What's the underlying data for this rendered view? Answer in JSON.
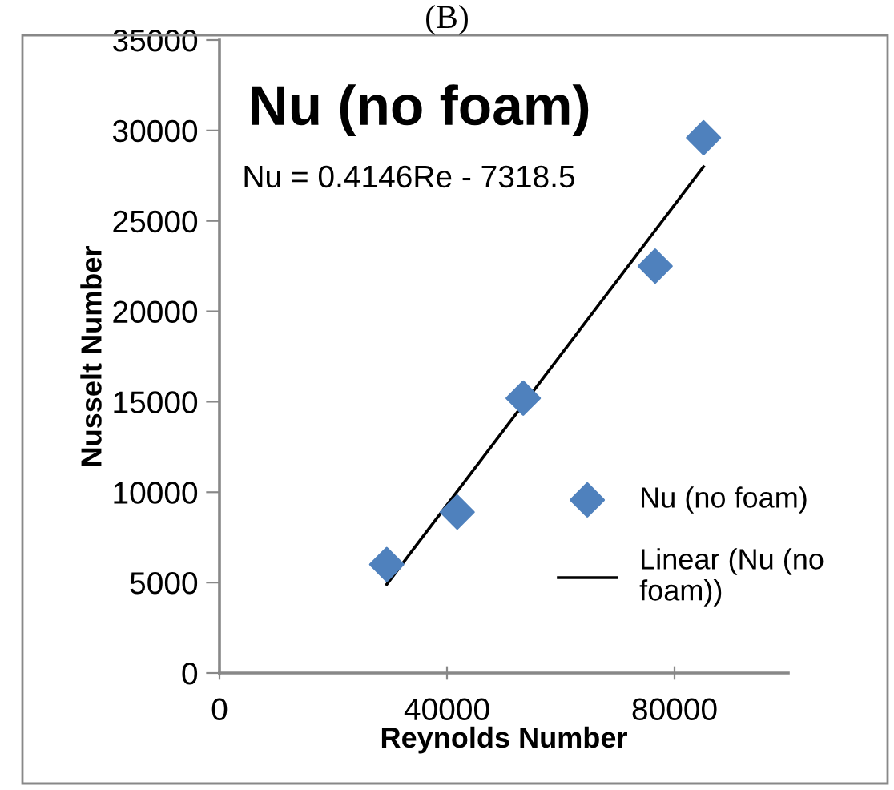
{
  "chart_data": {
    "type": "scatter",
    "title": "Nu (no foam)",
    "subtitle": "(B)",
    "xlabel": "Reynolds Number",
    "ylabel": "Nusselt Number",
    "annotations": [
      "Nu = 0.4146Re - 7318.5"
    ],
    "series": [
      {
        "name": "Nu (no foam)",
        "color": "#4f81bd",
        "marker": "diamond",
        "x": [
          29400,
          41800,
          53400,
          76600,
          85100
        ],
        "values": [
          6000,
          8900,
          15200,
          22500,
          29600
        ]
      },
      {
        "name": "Linear (Nu (no foam))",
        "type": "line",
        "color": "#000000",
        "line_style": "solid",
        "x": [
          29400,
          85100
        ],
        "values": [
          4900,
          28000
        ]
      }
    ],
    "xlim": [
      0,
      100000
    ],
    "xticks": [
      0,
      40000,
      80000
    ],
    "ylim": [
      0,
      35000
    ],
    "yticks": [
      0,
      5000,
      10000,
      15000,
      20000,
      25000,
      30000,
      35000
    ],
    "grid": false,
    "legend": "right"
  }
}
